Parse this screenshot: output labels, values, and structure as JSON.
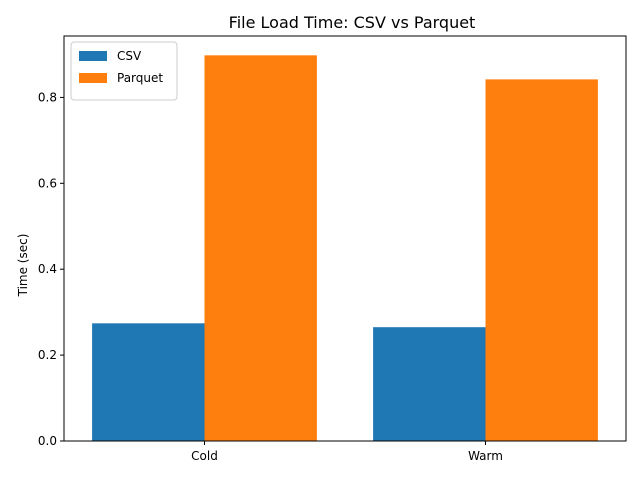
{
  "chart_data": {
    "type": "bar",
    "title": "File Load Time: CSV vs Parquet",
    "xlabel": "",
    "ylabel": "Time (sec)",
    "categories": [
      "Cold",
      "Warm"
    ],
    "series": [
      {
        "name": "CSV",
        "values": [
          0.274,
          0.265
        ],
        "color": "#1f77b4"
      },
      {
        "name": "Parquet",
        "values": [
          0.898,
          0.842
        ],
        "color": "#ff7f0e"
      }
    ],
    "ylim": [
      0,
      0.943
    ],
    "yticks": [
      "0.0",
      "0.2",
      "0.4",
      "0.6",
      "0.8"
    ],
    "grid": false,
    "legend_position": "top-left"
  }
}
